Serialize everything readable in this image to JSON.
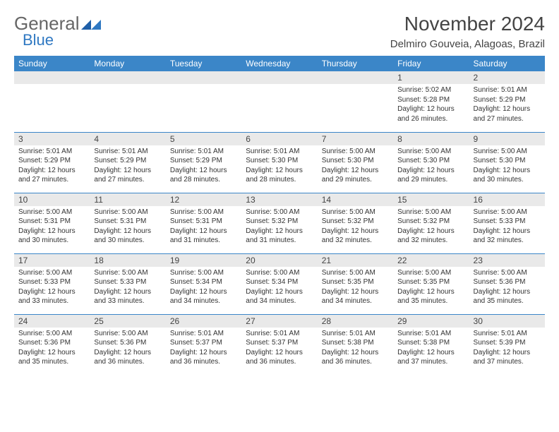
{
  "logo": {
    "part1": "General",
    "part2": "Blue"
  },
  "title": "November 2024",
  "subtitle": "Delmiro Gouveia, Alagoas, Brazil",
  "colors": {
    "header_bg": "#3b86c8",
    "daynum_bg": "#e9e9e9",
    "border": "#3b86c8",
    "logo_blue": "#2f78c2"
  },
  "day_headers": [
    "Sunday",
    "Monday",
    "Tuesday",
    "Wednesday",
    "Thursday",
    "Friday",
    "Saturday"
  ],
  "rows": [
    [
      {
        "num": "",
        "lines": [
          "",
          "",
          "",
          ""
        ]
      },
      {
        "num": "",
        "lines": [
          "",
          "",
          "",
          ""
        ]
      },
      {
        "num": "",
        "lines": [
          "",
          "",
          "",
          ""
        ]
      },
      {
        "num": "",
        "lines": [
          "",
          "",
          "",
          ""
        ]
      },
      {
        "num": "",
        "lines": [
          "",
          "",
          "",
          ""
        ]
      },
      {
        "num": "1",
        "lines": [
          "Sunrise: 5:02 AM",
          "Sunset: 5:28 PM",
          "Daylight: 12 hours",
          "and 26 minutes."
        ]
      },
      {
        "num": "2",
        "lines": [
          "Sunrise: 5:01 AM",
          "Sunset: 5:29 PM",
          "Daylight: 12 hours",
          "and 27 minutes."
        ]
      }
    ],
    [
      {
        "num": "3",
        "lines": [
          "Sunrise: 5:01 AM",
          "Sunset: 5:29 PM",
          "Daylight: 12 hours",
          "and 27 minutes."
        ]
      },
      {
        "num": "4",
        "lines": [
          "Sunrise: 5:01 AM",
          "Sunset: 5:29 PM",
          "Daylight: 12 hours",
          "and 27 minutes."
        ]
      },
      {
        "num": "5",
        "lines": [
          "Sunrise: 5:01 AM",
          "Sunset: 5:29 PM",
          "Daylight: 12 hours",
          "and 28 minutes."
        ]
      },
      {
        "num": "6",
        "lines": [
          "Sunrise: 5:01 AM",
          "Sunset: 5:30 PM",
          "Daylight: 12 hours",
          "and 28 minutes."
        ]
      },
      {
        "num": "7",
        "lines": [
          "Sunrise: 5:00 AM",
          "Sunset: 5:30 PM",
          "Daylight: 12 hours",
          "and 29 minutes."
        ]
      },
      {
        "num": "8",
        "lines": [
          "Sunrise: 5:00 AM",
          "Sunset: 5:30 PM",
          "Daylight: 12 hours",
          "and 29 minutes."
        ]
      },
      {
        "num": "9",
        "lines": [
          "Sunrise: 5:00 AM",
          "Sunset: 5:30 PM",
          "Daylight: 12 hours",
          "and 30 minutes."
        ]
      }
    ],
    [
      {
        "num": "10",
        "lines": [
          "Sunrise: 5:00 AM",
          "Sunset: 5:31 PM",
          "Daylight: 12 hours",
          "and 30 minutes."
        ]
      },
      {
        "num": "11",
        "lines": [
          "Sunrise: 5:00 AM",
          "Sunset: 5:31 PM",
          "Daylight: 12 hours",
          "and 30 minutes."
        ]
      },
      {
        "num": "12",
        "lines": [
          "Sunrise: 5:00 AM",
          "Sunset: 5:31 PM",
          "Daylight: 12 hours",
          "and 31 minutes."
        ]
      },
      {
        "num": "13",
        "lines": [
          "Sunrise: 5:00 AM",
          "Sunset: 5:32 PM",
          "Daylight: 12 hours",
          "and 31 minutes."
        ]
      },
      {
        "num": "14",
        "lines": [
          "Sunrise: 5:00 AM",
          "Sunset: 5:32 PM",
          "Daylight: 12 hours",
          "and 32 minutes."
        ]
      },
      {
        "num": "15",
        "lines": [
          "Sunrise: 5:00 AM",
          "Sunset: 5:32 PM",
          "Daylight: 12 hours",
          "and 32 minutes."
        ]
      },
      {
        "num": "16",
        "lines": [
          "Sunrise: 5:00 AM",
          "Sunset: 5:33 PM",
          "Daylight: 12 hours",
          "and 32 minutes."
        ]
      }
    ],
    [
      {
        "num": "17",
        "lines": [
          "Sunrise: 5:00 AM",
          "Sunset: 5:33 PM",
          "Daylight: 12 hours",
          "and 33 minutes."
        ]
      },
      {
        "num": "18",
        "lines": [
          "Sunrise: 5:00 AM",
          "Sunset: 5:33 PM",
          "Daylight: 12 hours",
          "and 33 minutes."
        ]
      },
      {
        "num": "19",
        "lines": [
          "Sunrise: 5:00 AM",
          "Sunset: 5:34 PM",
          "Daylight: 12 hours",
          "and 34 minutes."
        ]
      },
      {
        "num": "20",
        "lines": [
          "Sunrise: 5:00 AM",
          "Sunset: 5:34 PM",
          "Daylight: 12 hours",
          "and 34 minutes."
        ]
      },
      {
        "num": "21",
        "lines": [
          "Sunrise: 5:00 AM",
          "Sunset: 5:35 PM",
          "Daylight: 12 hours",
          "and 34 minutes."
        ]
      },
      {
        "num": "22",
        "lines": [
          "Sunrise: 5:00 AM",
          "Sunset: 5:35 PM",
          "Daylight: 12 hours",
          "and 35 minutes."
        ]
      },
      {
        "num": "23",
        "lines": [
          "Sunrise: 5:00 AM",
          "Sunset: 5:36 PM",
          "Daylight: 12 hours",
          "and 35 minutes."
        ]
      }
    ],
    [
      {
        "num": "24",
        "lines": [
          "Sunrise: 5:00 AM",
          "Sunset: 5:36 PM",
          "Daylight: 12 hours",
          "and 35 minutes."
        ]
      },
      {
        "num": "25",
        "lines": [
          "Sunrise: 5:00 AM",
          "Sunset: 5:36 PM",
          "Daylight: 12 hours",
          "and 36 minutes."
        ]
      },
      {
        "num": "26",
        "lines": [
          "Sunrise: 5:01 AM",
          "Sunset: 5:37 PM",
          "Daylight: 12 hours",
          "and 36 minutes."
        ]
      },
      {
        "num": "27",
        "lines": [
          "Sunrise: 5:01 AM",
          "Sunset: 5:37 PM",
          "Daylight: 12 hours",
          "and 36 minutes."
        ]
      },
      {
        "num": "28",
        "lines": [
          "Sunrise: 5:01 AM",
          "Sunset: 5:38 PM",
          "Daylight: 12 hours",
          "and 36 minutes."
        ]
      },
      {
        "num": "29",
        "lines": [
          "Sunrise: 5:01 AM",
          "Sunset: 5:38 PM",
          "Daylight: 12 hours",
          "and 37 minutes."
        ]
      },
      {
        "num": "30",
        "lines": [
          "Sunrise: 5:01 AM",
          "Sunset: 5:39 PM",
          "Daylight: 12 hours",
          "and 37 minutes."
        ]
      }
    ]
  ]
}
